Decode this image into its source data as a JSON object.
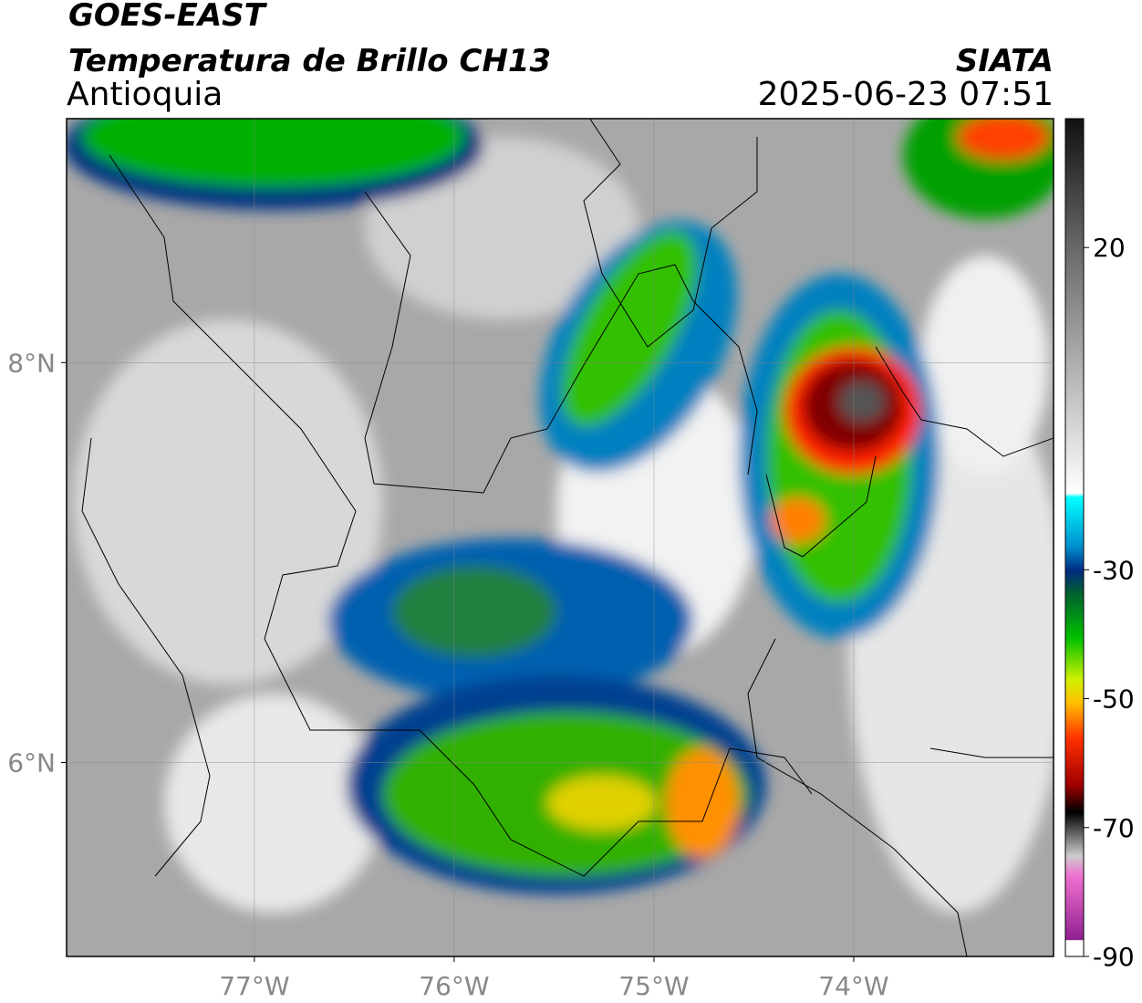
{
  "header": {
    "satellite": "GOES-EAST",
    "product": "Temperatura de Brillo CH13",
    "region": "Antioquia",
    "agency": "SIATA",
    "datetime": "2025-06-23 07:51"
  },
  "map": {
    "xlim": [
      -77.94,
      -73.0
    ],
    "ylim": [
      5.03,
      9.22
    ],
    "xticks": [
      {
        "value": -77,
        "label": "77°W"
      },
      {
        "value": -76,
        "label": "76°W"
      },
      {
        "value": -75,
        "label": "75°W"
      },
      {
        "value": -74,
        "label": "74°W"
      }
    ],
    "yticks": [
      {
        "value": 8,
        "label": "8°N"
      },
      {
        "value": 6,
        "label": "6°N"
      }
    ],
    "grid": true
  },
  "colorbar": {
    "range": [
      -90,
      40
    ],
    "ticks": [
      20,
      -30,
      -50,
      -70,
      -90
    ]
  }
}
